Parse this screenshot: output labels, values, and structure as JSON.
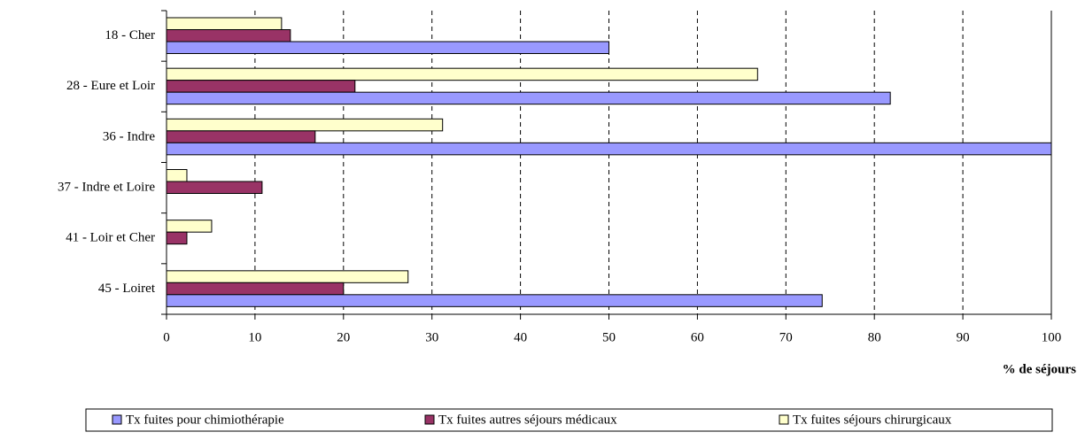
{
  "chart_data": {
    "type": "bar",
    "orientation": "horizontal",
    "categories": [
      "18 - Cher",
      "28 - Eure et Loir",
      "36 - Indre",
      "37 - Indre et Loire",
      "41 - Loir et Cher",
      "45 - Loiret"
    ],
    "series": [
      {
        "name": "Tx fuites pour chimiothérapie",
        "color": "#9999ff",
        "values": [
          50,
          81.8,
          100,
          0,
          0,
          74.1
        ]
      },
      {
        "name": "Tx fuites autres séjours médicaux",
        "color": "#993366",
        "values": [
          14,
          21.3,
          16.8,
          10.8,
          2.3,
          20
        ]
      },
      {
        "name": "Tx fuites séjours chirurgicaux",
        "color": "#ffffcc",
        "values": [
          13,
          66.8,
          31.2,
          2.3,
          5.1,
          27.3
        ]
      }
    ],
    "xlabel": "% de séjours",
    "xlim": [
      0,
      100
    ],
    "xticks": [
      0,
      10,
      20,
      30,
      40,
      50,
      60,
      70,
      80,
      90,
      100
    ],
    "grid": true,
    "legend": "bottom"
  }
}
